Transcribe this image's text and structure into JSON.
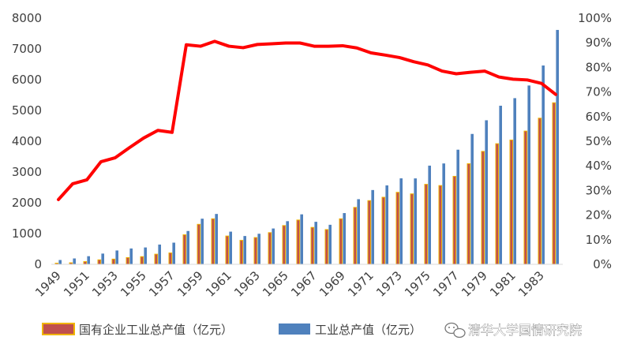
{
  "chart_data": {
    "type": "bar",
    "categories": [
      "1949",
      "1950",
      "1951",
      "1952",
      "1953",
      "1954",
      "1955",
      "1956",
      "1957",
      "1958",
      "1959",
      "1960",
      "1961",
      "1962",
      "1963",
      "1964",
      "1965",
      "1966",
      "1967",
      "1968",
      "1969",
      "1970",
      "1971",
      "1972",
      "1973",
      "1974",
      "1975",
      "1976",
      "1977",
      "1978",
      "1979",
      "1980",
      "1981",
      "1982",
      "1983",
      "1984"
    ],
    "x_tick_labels": [
      "1949",
      "1951",
      "1953",
      "1955",
      "1957",
      "1959",
      "1961",
      "1963",
      "1965",
      "1967",
      "1969",
      "1971",
      "1973",
      "1975",
      "1977",
      "1979",
      "1981",
      "1983"
    ],
    "series": [
      {
        "name": "国有企业工业总产值（亿元）",
        "type": "bar",
        "axis": "left",
        "color": "#c0504d",
        "border_color": "#f0b400",
        "values": [
          37,
          50,
          89,
          146,
          170,
          220,
          250,
          330,
          370,
          960,
          1300,
          1480,
          920,
          780,
          870,
          1030,
          1260,
          1440,
          1200,
          1130,
          1480,
          1850,
          2070,
          2180,
          2340,
          2290,
          2600,
          2560,
          2860,
          3270,
          3670,
          3920,
          4040,
          4330,
          4750,
          5250
        ]
      },
      {
        "name": "工业总产值（亿元）",
        "type": "bar",
        "axis": "left",
        "color": "#4f81bd",
        "values": [
          140,
          191,
          264,
          349,
          450,
          515,
          548,
          642,
          704,
          1083,
          1483,
          1637,
          1062,
          920,
          993,
          1164,
          1402,
          1624,
          1382,
          1285,
          1665,
          2117,
          2414,
          2565,
          2794,
          2792,
          3207,
          3278,
          3725,
          4237,
          4681,
          5154,
          5400,
          5811,
          6461,
          7617
        ]
      },
      {
        "name": "",
        "type": "line",
        "axis": "right",
        "color": "#ff0000",
        "values": [
          26.3,
          32.7,
          34.3,
          41.7,
          43.3,
          47.4,
          51.3,
          54.4,
          53.6,
          89.2,
          88.6,
          90.6,
          88.6,
          88.0,
          89.3,
          89.6,
          89.9,
          89.9,
          88.6,
          88.6,
          88.8,
          87.9,
          85.9,
          85.0,
          84.0,
          82.3,
          81.0,
          78.5,
          77.4,
          78.0,
          78.5,
          76.1,
          75.2,
          74.9,
          73.5,
          69.0
        ]
      }
    ],
    "ylim": [
      0,
      8000
    ],
    "y_ticks": [
      0,
      1000,
      2000,
      3000,
      4000,
      5000,
      6000,
      7000,
      8000
    ],
    "y2lim": [
      0,
      100
    ],
    "y2_ticks": [
      "0%",
      "10%",
      "20%",
      "30%",
      "40%",
      "50%",
      "60%",
      "70%",
      "80%",
      "90%",
      "100%"
    ],
    "grid": false,
    "legend_position": "bottom",
    "title": "",
    "xlabel": "",
    "ylabel": ""
  },
  "legend": {
    "items": [
      {
        "label": "国有企业工业总产值（亿元）"
      },
      {
        "label": "工业总产值（亿元）"
      }
    ]
  },
  "watermark": {
    "text": "清华大学国情研究院",
    "icon": "wechat-icon"
  }
}
